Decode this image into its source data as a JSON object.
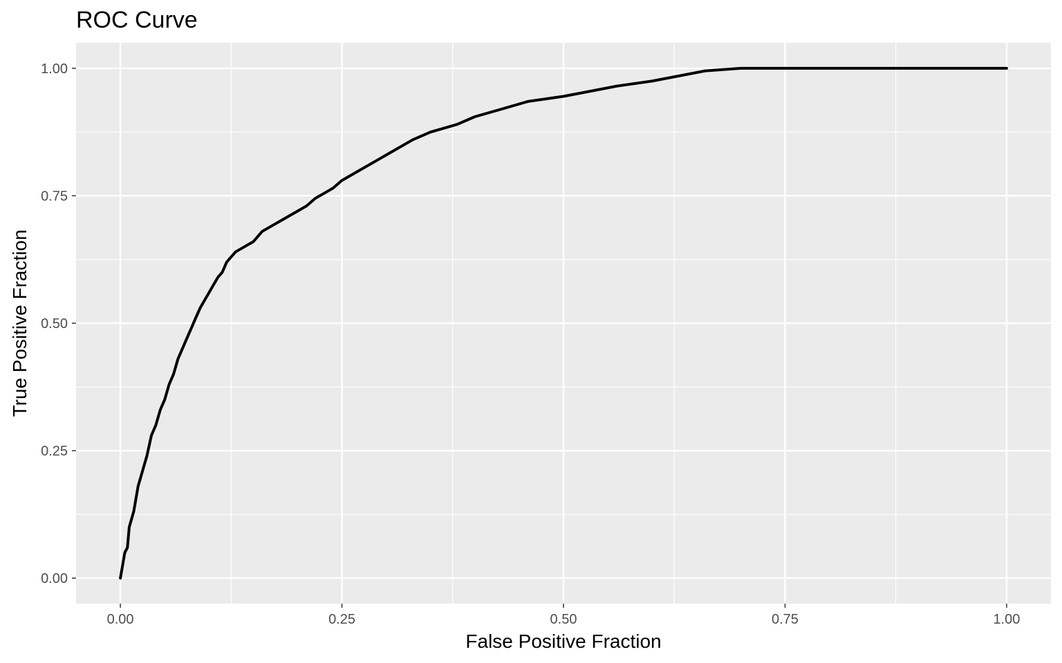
{
  "chart_data": {
    "type": "line",
    "title": "ROC Curve",
    "xlabel": "False Positive Fraction",
    "ylabel": "True Positive Fraction",
    "xlim": [
      -0.05,
      1.05
    ],
    "ylim": [
      -0.05,
      1.05
    ],
    "x_ticks": [
      0.0,
      0.25,
      0.5,
      0.75,
      1.0
    ],
    "x_tick_labels": [
      "0.00",
      "0.25",
      "0.50",
      "0.75",
      "1.00"
    ],
    "y_ticks": [
      0.0,
      0.25,
      0.5,
      0.75,
      1.0
    ],
    "y_tick_labels": [
      "0.00",
      "0.25",
      "0.50",
      "0.75",
      "1.00"
    ],
    "grid": true,
    "legend": "none",
    "colors": {
      "panel": "#ebebeb",
      "grid": "#ffffff",
      "line": "#000000",
      "tick": "#333333"
    },
    "series": [
      {
        "x": [
          0.0,
          0.005,
          0.008,
          0.01,
          0.015,
          0.017,
          0.02,
          0.025,
          0.03,
          0.035,
          0.04,
          0.045,
          0.05,
          0.055,
          0.06,
          0.065,
          0.07,
          0.075,
          0.08,
          0.085,
          0.09,
          0.095,
          0.1,
          0.105,
          0.11,
          0.115,
          0.12,
          0.13,
          0.14,
          0.15,
          0.16,
          0.17,
          0.18,
          0.19,
          0.2,
          0.21,
          0.22,
          0.23,
          0.24,
          0.25,
          0.27,
          0.29,
          0.31,
          0.33,
          0.35,
          0.38,
          0.4,
          0.43,
          0.46,
          0.5,
          0.53,
          0.56,
          0.6,
          0.63,
          0.66,
          0.7,
          0.73,
          0.76,
          0.8,
          0.83,
          0.86,
          0.9,
          0.93,
          0.96,
          0.98,
          1.0
        ],
        "y": [
          0.0,
          0.05,
          0.06,
          0.1,
          0.13,
          0.15,
          0.18,
          0.21,
          0.24,
          0.28,
          0.3,
          0.33,
          0.35,
          0.38,
          0.4,
          0.43,
          0.45,
          0.47,
          0.49,
          0.51,
          0.53,
          0.545,
          0.56,
          0.575,
          0.59,
          0.6,
          0.62,
          0.64,
          0.65,
          0.66,
          0.68,
          0.69,
          0.7,
          0.71,
          0.72,
          0.73,
          0.745,
          0.755,
          0.765,
          0.78,
          0.8,
          0.82,
          0.84,
          0.86,
          0.875,
          0.89,
          0.905,
          0.92,
          0.935,
          0.945,
          0.955,
          0.965,
          0.975,
          0.985,
          0.995,
          1.0,
          1.0,
          1.0,
          1.0,
          1.0,
          1.0,
          1.0,
          1.0,
          1.0,
          1.0,
          1.0
        ]
      }
    ]
  }
}
